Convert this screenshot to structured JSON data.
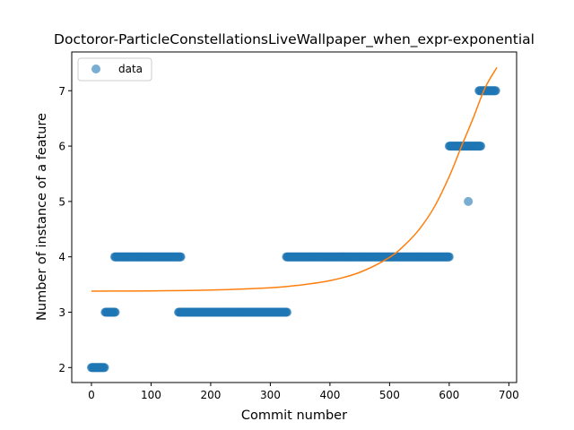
{
  "chart_data": {
    "type": "scatter",
    "title": "Doctoror-ParticleConstellationsLiveWallpaper_when_expr-exponential",
    "xlabel": "Commit number",
    "ylabel": "Number of instance of a feature",
    "xlim": [
      -33,
      713
    ],
    "ylim": [
      1.73,
      7.7
    ],
    "xticks": [
      0,
      100,
      200,
      300,
      400,
      500,
      600,
      700
    ],
    "yticks": [
      2,
      3,
      4,
      5,
      6,
      7
    ],
    "grid": false,
    "legend": {
      "position": "upper left",
      "entries": [
        "data"
      ]
    },
    "colors": {
      "data": "#1f77b4",
      "fit": "#ff7f0e"
    },
    "series": [
      {
        "name": "data",
        "kind": "scatter",
        "segments": [
          {
            "x_start": 0,
            "x_end": 22,
            "y": 2
          },
          {
            "x_start": 23,
            "x_end": 40,
            "y": 3
          },
          {
            "x_start": 39,
            "x_end": 150,
            "y": 4
          },
          {
            "x_start": 146,
            "x_end": 328,
            "y": 3
          },
          {
            "x_start": 327,
            "x_end": 600,
            "y": 4
          },
          {
            "x_start": 600,
            "x_end": 653,
            "y": 6
          },
          {
            "x_start": 650,
            "x_end": 678,
            "y": 7
          }
        ],
        "points": [
          {
            "x": 632,
            "y": 5
          }
        ]
      },
      {
        "name": "fit",
        "kind": "line",
        "x": [
          0,
          100,
          200,
          300,
          350,
          400,
          450,
          500,
          525,
          550,
          575,
          600,
          620,
          640,
          660,
          680
        ],
        "y": [
          3.38,
          3.385,
          3.4,
          3.44,
          3.49,
          3.57,
          3.72,
          3.99,
          4.21,
          4.5,
          4.9,
          5.45,
          5.98,
          6.5,
          7.05,
          7.42
        ]
      }
    ]
  }
}
